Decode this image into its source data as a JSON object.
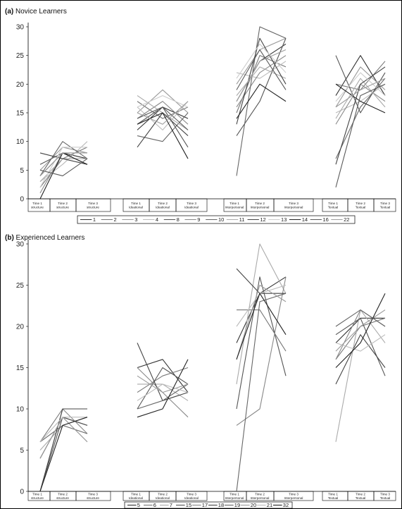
{
  "chart_data": [
    {
      "type": "line",
      "panel_label": "(a)",
      "title": "Novice Learners",
      "ylim": [
        0,
        30
      ],
      "yticks": [
        0,
        5,
        10,
        15,
        20,
        25,
        30
      ],
      "categories": [
        "Time 1 structure",
        "Time 2 structure",
        "Time 3 structure",
        "Time 1 Ideational",
        "Time 2 Ideational",
        "Time 3 Ideational",
        "Time 1 Interpersonal",
        "Time 2 Interpersonal",
        "Time 3 Interpersonal",
        "Time 1 Textual",
        "Time 2 Textual",
        "Time 3 Textual"
      ],
      "groups": [
        "structure",
        "Ideational",
        "Interpersonal",
        "Textual"
      ],
      "legend": [
        "1",
        "2",
        "3",
        "4",
        "8",
        "9",
        "10",
        "11",
        "12",
        "13",
        "14",
        "16",
        "22"
      ],
      "series": [
        {
          "name": "1",
          "color": "#333333",
          "structure": [
            4,
            8,
            7
          ],
          "Ideational": [
            12,
            16,
            14
          ],
          "Interpersonal": [
            17,
            24,
            27
          ],
          "Textual": [
            18,
            25,
            18
          ]
        },
        {
          "name": "2",
          "color": "#777777",
          "structure": [
            2,
            7,
            9
          ],
          "Ideational": [
            17,
            14,
            16
          ],
          "Interpersonal": [
            15,
            25,
            23
          ],
          "Textual": [
            20,
            19,
            24
          ]
        },
        {
          "name": "3",
          "color": "#999999",
          "structure": [
            5,
            9,
            8
          ],
          "Ideational": [
            15,
            19,
            15
          ],
          "Interpersonal": [
            20,
            26,
            28
          ],
          "Textual": [
            16,
            23,
            19
          ]
        },
        {
          "name": "4",
          "color": "#bbbbbb",
          "structure": [
            3,
            6,
            10
          ],
          "Ideational": [
            16,
            12,
            17
          ],
          "Interpersonal": [
            22,
            21,
            24
          ],
          "Textual": [
            15,
            17,
            20
          ]
        },
        {
          "name": "8",
          "color": "#555555",
          "structure": [
            6,
            8,
            6
          ],
          "Ideational": [
            13,
            16,
            9
          ],
          "Interpersonal": [
            11,
            17,
            28
          ],
          "Textual": [
            25,
            15,
            22
          ]
        },
        {
          "name": "9",
          "color": "#888888",
          "structure": [
            1,
            8,
            8
          ],
          "Ideational": [
            14,
            17,
            13
          ],
          "Interpersonal": [
            16,
            22,
            25
          ],
          "Textual": [
            13,
            20,
            17
          ]
        },
        {
          "name": "10",
          "color": "#666666",
          "structure": [
            4,
            10,
            7
          ],
          "Ideational": [
            11,
            10,
            15
          ],
          "Interpersonal": [
            4,
            30,
            28
          ],
          "Textual": [
            7,
            16,
            21
          ]
        },
        {
          "name": "11",
          "color": "#aaaaaa",
          "structure": [
            3,
            7,
            7
          ],
          "Ideational": [
            18,
            15,
            12
          ],
          "Interpersonal": [
            18,
            23,
            21
          ],
          "Textual": [
            14,
            21,
            16
          ]
        },
        {
          "name": "12",
          "color": "#444444",
          "structure": [
            8,
            7,
            6
          ],
          "Ideational": [
            9,
            15,
            11
          ],
          "Interpersonal": [
            13,
            28,
            20
          ],
          "Textual": [
            6,
            20,
            23
          ]
        },
        {
          "name": "13",
          "color": "#cccccc",
          "structure": [
            2,
            9,
            9
          ],
          "Ideational": [
            16,
            18,
            16
          ],
          "Interpersonal": [
            21,
            27,
            22
          ],
          "Textual": [
            17,
            22,
            18
          ]
        },
        {
          "name": "14",
          "color": "#222222",
          "structure": [
            0,
            8,
            6
          ],
          "Ideational": [
            13,
            15,
            7
          ],
          "Interpersonal": [
            14,
            20,
            17
          ],
          "Textual": [
            20,
            17,
            15
          ]
        },
        {
          "name": "16",
          "color": "#5a5a5a",
          "structure": [
            5,
            4,
            7
          ],
          "Ideational": [
            14,
            16,
            12
          ],
          "Interpersonal": [
            19,
            26,
            19
          ],
          "Textual": [
            2,
            18,
            20
          ]
        },
        {
          "name": "22",
          "color": "#9e9e9e",
          "structure": [
            4,
            8,
            8
          ],
          "Ideational": [
            15,
            13,
            17
          ],
          "Interpersonal": [
            17,
            24,
            26
          ],
          "Textual": [
            16,
            19,
            21
          ]
        }
      ]
    },
    {
      "type": "line",
      "panel_label": "(b)",
      "title": "Experienced Learners",
      "ylim": [
        0,
        30
      ],
      "yticks": [
        0,
        5,
        10,
        15,
        20,
        25,
        30
      ],
      "categories": [
        "Time 1 structure",
        "Time 2 structure",
        "Time 3 structure",
        "Time 1 Ideational",
        "Time 2 Ideational",
        "Time 3 Ideational",
        "Time 1 Interpersonal",
        "Time 2 Interpersonal",
        "Time 3 Interpersonal",
        "Time 1 Textual",
        "Time 2 Textual",
        "Time 3 Textual"
      ],
      "groups": [
        "structure",
        "Ideational",
        "Interpersonal",
        "Textual"
      ],
      "legend": [
        "5",
        "6",
        "7",
        "15",
        "17",
        "18",
        "19",
        "20",
        "21",
        "32"
      ],
      "series": [
        {
          "name": "5",
          "color": "#333333",
          "structure": [
            4,
            9,
            8
          ],
          "Ideational": [
            15,
            16,
            12
          ],
          "Interpersonal": [
            18,
            24,
            26
          ],
          "Textual": [
            18,
            21,
            21
          ]
        },
        {
          "name": "6",
          "color": "#777777",
          "structure": [
            6,
            10,
            10
          ],
          "Ideational": [
            12,
            14,
            15
          ],
          "Interpersonal": [
            22,
            22,
            17
          ],
          "Textual": [
            16,
            20,
            21
          ]
        },
        {
          "name": "7",
          "color": "#aaaaaa",
          "structure": [
            5,
            8,
            9
          ],
          "Ideational": [
            13,
            13,
            11
          ],
          "Interpersonal": [
            13,
            30,
            24
          ],
          "Textual": [
            6,
            22,
            18
          ]
        },
        {
          "name": "15",
          "color": "#555555",
          "structure": [
            0,
            9,
            8
          ],
          "Ideational": [
            10,
            15,
            13
          ],
          "Interpersonal": [
            10,
            26,
            14
          ],
          "Textual": [
            19,
            21,
            14
          ]
        },
        {
          "name": "17",
          "color": "#888888",
          "structure": [
            0,
            10,
            7
          ],
          "Ideational": [
            15,
            12,
            9
          ],
          "Interpersonal": [
            8,
            10,
            26
          ],
          "Textual": [
            16,
            22,
            20
          ]
        },
        {
          "name": "18",
          "color": "#444444",
          "structure": [
            0,
            10,
            10
          ],
          "Ideational": [
            18,
            11,
            12
          ],
          "Interpersonal": [
            27,
            24,
            24
          ],
          "Textual": [
            13,
            19,
            15
          ]
        },
        {
          "name": "19",
          "color": "#666666",
          "structure": [
            6,
            8,
            7
          ],
          "Ideational": [
            10,
            11,
            13
          ],
          "Interpersonal": [
            0,
            23,
            24
          ],
          "Textual": [
            20,
            22,
            20
          ]
        },
        {
          "name": "20",
          "color": "#999999",
          "structure": [
            4,
            9,
            6
          ],
          "Ideational": [
            14,
            12,
            13
          ],
          "Interpersonal": [
            16,
            25,
            23
          ],
          "Textual": [
            17,
            20,
            22
          ]
        },
        {
          "name": "21",
          "color": "#bbbbbb",
          "structure": [
            6,
            9,
            9
          ],
          "Ideational": [
            11,
            13,
            12
          ],
          "Interpersonal": [
            20,
            24,
            25
          ],
          "Textual": [
            18,
            17,
            19
          ]
        },
        {
          "name": "32",
          "color": "#222222",
          "structure": [
            0,
            8,
            9
          ],
          "Ideational": [
            9,
            10,
            16
          ],
          "Interpersonal": [
            16,
            24,
            19
          ],
          "Textual": [
            15,
            18,
            24
          ]
        }
      ]
    }
  ]
}
